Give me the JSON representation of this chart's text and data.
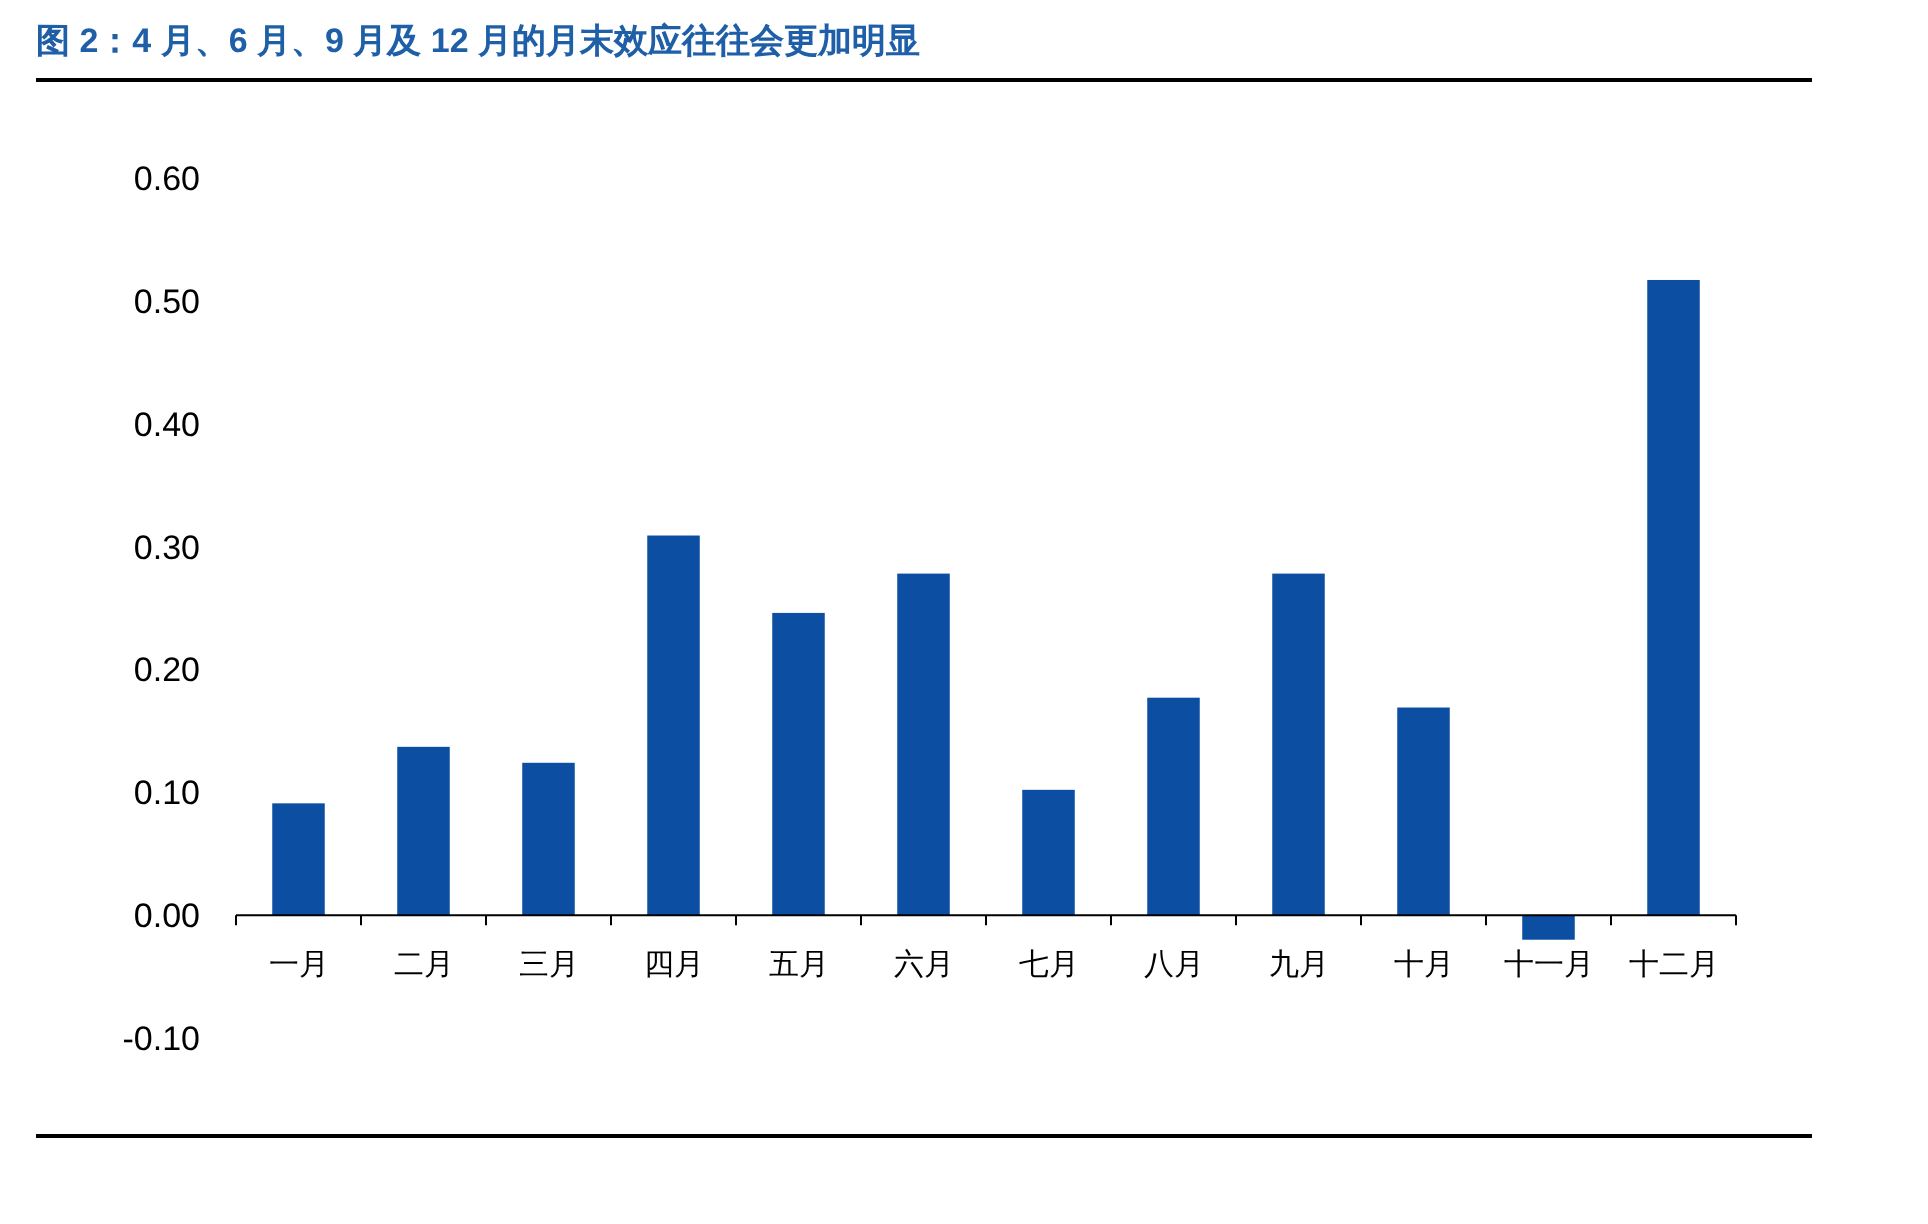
{
  "chart_data": {
    "type": "bar",
    "title": "图 2：4 月、6 月、9 月及 12 月的月末效应往往会更加明显",
    "categories": [
      "一月",
      "二月",
      "三月",
      "四月",
      "五月",
      "六月",
      "七月",
      "八月",
      "九月",
      "十月",
      "十一月",
      "十二月"
    ],
    "values": [
      0.091,
      0.137,
      0.124,
      0.309,
      0.246,
      0.278,
      0.102,
      0.177,
      0.278,
      0.169,
      -0.02,
      0.517
    ],
    "color": "#0b4ea2",
    "ylim": [
      -0.1,
      0.6
    ],
    "yticks": [
      {
        "value": -0.1,
        "label": "-0.10"
      },
      {
        "value": 0,
        "label": "0.00"
      },
      {
        "value": 0.1,
        "label": "0.10"
      },
      {
        "value": 0.2,
        "label": "0.20"
      },
      {
        "value": 0.3,
        "label": "0.30"
      },
      {
        "value": 0.4,
        "label": "0.40"
      },
      {
        "value": 0.5,
        "label": "0.50"
      },
      {
        "value": 0.6,
        "label": "0.60"
      }
    ]
  }
}
